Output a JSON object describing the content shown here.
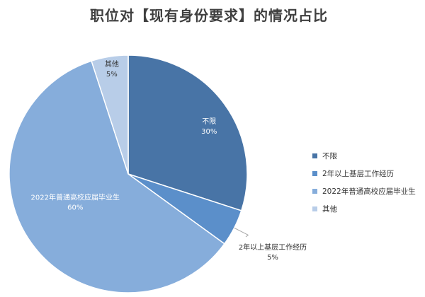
{
  "chart_data": {
    "type": "pie",
    "title": "职位对【现有身份要求】的情况占比",
    "series": [
      {
        "label": "不限",
        "value": 30,
        "percent_label": "30%",
        "color": "#4874a6"
      },
      {
        "label": "2年以上基层工作经历",
        "value": 5,
        "percent_label": "5%",
        "color": "#5b8fca"
      },
      {
        "label": "2022年普通高校应届毕业生",
        "value": 60,
        "percent_label": "60%",
        "color": "#86addb"
      },
      {
        "label": "其他",
        "value": 5,
        "percent_label": "5%",
        "color": "#b8cde8"
      }
    ],
    "legend_position": "right",
    "start_angle_deg": 0,
    "direction": "clockwise"
  }
}
